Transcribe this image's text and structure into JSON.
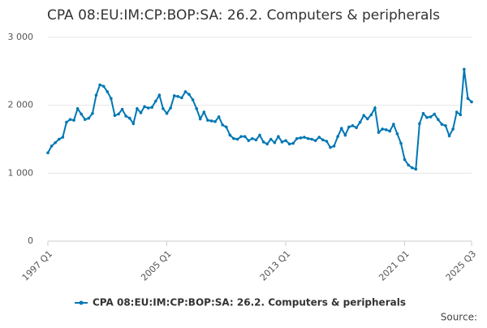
{
  "chart_data": {
    "type": "line",
    "title": "CPA 08:EU:IM:CP:BOP:SA: 26.2. Computers & peripherals",
    "source": "Source:",
    "categories": [
      "1997 Q1",
      null,
      null,
      null,
      null,
      null,
      null,
      null,
      null,
      null,
      null,
      null,
      null,
      null,
      null,
      null,
      null,
      null,
      null,
      null,
      null,
      null,
      null,
      null,
      null,
      null,
      null,
      null,
      null,
      null,
      null,
      null,
      "2005 Q1",
      null,
      null,
      null,
      null,
      null,
      null,
      null,
      null,
      null,
      null,
      null,
      null,
      null,
      null,
      null,
      null,
      null,
      null,
      null,
      null,
      null,
      null,
      null,
      null,
      null,
      null,
      null,
      null,
      null,
      null,
      null,
      "2013 Q1",
      null,
      null,
      null,
      null,
      null,
      null,
      null,
      null,
      null,
      null,
      null,
      null,
      null,
      null,
      null,
      null,
      null,
      null,
      null,
      null,
      null,
      null,
      null,
      null,
      null,
      null,
      null,
      null,
      null,
      null,
      null,
      "2021 Q1",
      null,
      null,
      null,
      null,
      null,
      null,
      null,
      null,
      null,
      null,
      null,
      null,
      null,
      null,
      null,
      null,
      null,
      "2025 Q3"
    ],
    "series": [
      {
        "name": "CPA 08:EU:IM:CP:BOP:SA: 26.2. Computers & peripherals",
        "color": "#0077b3",
        "values": [
          1300,
          1400,
          1450,
          1500,
          1530,
          1750,
          1790,
          1780,
          1950,
          1870,
          1790,
          1810,
          1880,
          2150,
          2300,
          2280,
          2200,
          2100,
          1850,
          1870,
          1940,
          1840,
          1810,
          1730,
          1950,
          1890,
          1980,
          1960,
          1970,
          2060,
          2150,
          1950,
          1880,
          1960,
          2140,
          2130,
          2110,
          2200,
          2160,
          2080,
          1950,
          1800,
          1900,
          1780,
          1770,
          1760,
          1830,
          1710,
          1680,
          1560,
          1510,
          1500,
          1540,
          1540,
          1480,
          1510,
          1490,
          1560,
          1460,
          1430,
          1500,
          1450,
          1540,
          1460,
          1480,
          1430,
          1440,
          1510,
          1520,
          1530,
          1510,
          1500,
          1480,
          1530,
          1490,
          1470,
          1380,
          1400,
          1540,
          1660,
          1560,
          1680,
          1700,
          1670,
          1750,
          1850,
          1800,
          1860,
          1960,
          1600,
          1650,
          1640,
          1620,
          1720,
          1580,
          1440,
          1200,
          1120,
          1080,
          1060,
          1730,
          1880,
          1820,
          1830,
          1870,
          1790,
          1720,
          1700,
          1550,
          1650,
          1900,
          1860,
          2530,
          2100,
          2050
        ]
      }
    ],
    "ylim": [
      0,
      3000
    ],
    "yticks": [
      0,
      {
        "value": 1000,
        "label": "1 000"
      },
      {
        "value": 2000,
        "label": "2 000"
      },
      {
        "value": 3000,
        "label": "3 000"
      }
    ],
    "grid": true,
    "legend": "bottom"
  }
}
